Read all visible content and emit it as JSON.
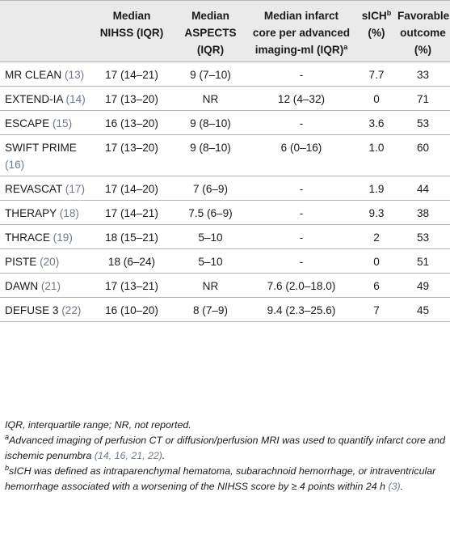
{
  "table": {
    "headers": [
      {
        "text": "",
        "sup": ""
      },
      {
        "text": "Median NIHSS (IQR)",
        "sup": ""
      },
      {
        "text": "Median ASPECTS (IQR)",
        "sup": ""
      },
      {
        "text": "Median infarct core per advanced imaging-ml (IQR)",
        "sup": "a"
      },
      {
        "text": "sICH",
        "sup": "b",
        "after": "(%)"
      },
      {
        "text": "Favorable outcome (%)",
        "sup": ""
      }
    ],
    "rows": [
      {
        "study": "MR CLEAN",
        "ref": "(13)",
        "nihss": "17 (14–21)",
        "aspects": "9 (7–10)",
        "core": "-",
        "sich": "7.7",
        "fav": "33"
      },
      {
        "study": "EXTEND-IA",
        "ref": "(14)",
        "nihss": "17 (13–20)",
        "aspects": "NR",
        "core": "12 (4–32)",
        "sich": "0",
        "fav": "71"
      },
      {
        "study": "ESCAPE",
        "ref": "(15)",
        "nihss": "16 (13–20)",
        "aspects": "9 (8–10)",
        "core": "-",
        "sich": "3.6",
        "fav": "53"
      },
      {
        "study": "SWIFT PRIME",
        "ref": "(16)",
        "nihss": "17 (13–20)",
        "aspects": "9 (8–10)",
        "core": "6 (0–16)",
        "sich": "1.0",
        "fav": "60"
      },
      {
        "study": "REVASCAT",
        "ref": "(17)",
        "nihss": "17 (14–20)",
        "aspects": "7 (6–9)",
        "core": "-",
        "sich": "1.9",
        "fav": "44"
      },
      {
        "study": "THERAPY",
        "ref": "(18)",
        "nihss": "17 (14–21)",
        "aspects": "7.5 (6–9)",
        "core": "-",
        "sich": "9.3",
        "fav": "38"
      },
      {
        "study": "THRACE",
        "ref": "(19)",
        "nihss": "18 (15–21)",
        "aspects": "5–10",
        "core": "-",
        "sich": "2",
        "fav": "53"
      },
      {
        "study": "PISTE",
        "ref": "(20)",
        "nihss": "18 (6–24)",
        "aspects": "5–10",
        "core": "-",
        "sich": "0",
        "fav": "51"
      },
      {
        "study": "DAWN",
        "ref": "(21)",
        "nihss": "17 (13–21)",
        "aspects": "NR",
        "core": "7.6 (2.0–18.0)",
        "sich": "6",
        "fav": "49"
      },
      {
        "study": "DEFUSE 3",
        "ref": "(22)",
        "nihss": "16 (10–20)",
        "aspects": "8 (7–9)",
        "core": "9.4 (2.3–25.6)",
        "sich": "7",
        "fav": "45"
      }
    ]
  },
  "footnotes": {
    "abbrev": "IQR, interquartile range; NR, not reported.",
    "a_mark": "a",
    "a_text": "Advanced imaging of perfusion CT or diffusion/perfusion MRI was used to quantify infarct core and ischemic penumbra ",
    "a_refs": "(14, 16, 21, 22)",
    "a_end": ".",
    "b_mark": "b",
    "b_text": "sICH was defined as intraparenchymal hematoma, subarachnoid hemorrhage, or intraventricular hemorrhage associated with a worsening of the NIHSS score by ≥ 4 points within 24 h ",
    "b_refs": "(3)",
    "b_end": "."
  }
}
